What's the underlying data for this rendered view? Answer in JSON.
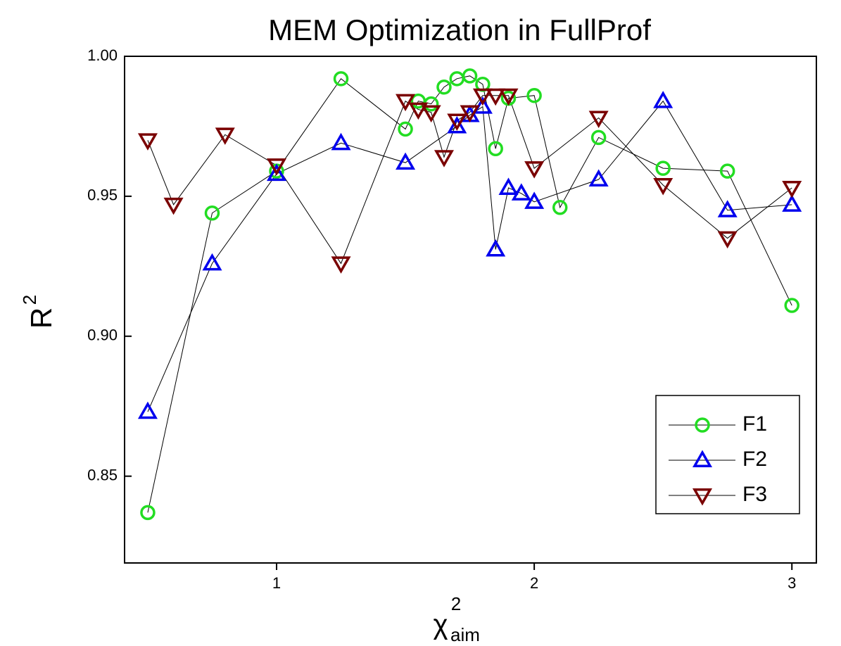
{
  "chart_data": {
    "type": "line",
    "title": "MEM Optimization in FullProf",
    "ylabel": {
      "base": "R",
      "sup": "2"
    },
    "xlabel": {
      "base": "χ",
      "sup": "2",
      "sub": "aim"
    },
    "xlim": [
      0.41,
      3.095
    ],
    "ylim": [
      0.819,
      1.0
    ],
    "xticks": [
      1,
      2,
      3
    ],
    "yticks": [
      {
        "value": 0.85,
        "label": "0.85"
      },
      {
        "value": 0.9,
        "label": "0.90"
      },
      0.95,
      {
        "value": 1.0,
        "label": "1.00"
      }
    ],
    "legend": "lower right",
    "series": [
      {
        "name": "F1",
        "color": "#22dd22",
        "marker": "circle",
        "x": [
          0.5,
          0.75,
          1.0,
          1.25,
          1.5,
          1.55,
          1.6,
          1.65,
          1.7,
          1.75,
          1.8,
          1.85,
          1.9,
          2.0,
          2.1,
          2.25,
          2.5,
          2.75,
          3.0
        ],
        "values": [
          0.837,
          0.944,
          0.959,
          0.992,
          0.974,
          0.984,
          0.983,
          0.989,
          0.992,
          0.993,
          0.99,
          0.967,
          0.985,
          0.986,
          0.946,
          0.971,
          0.96,
          0.959,
          0.911
        ]
      },
      {
        "name": "F2",
        "color": "#0000ee",
        "marker": "triangle-up",
        "x": [
          0.5,
          0.75,
          1.0,
          1.25,
          1.5,
          1.7,
          1.75,
          1.8,
          1.85,
          1.9,
          1.95,
          2.0,
          2.25,
          2.5,
          2.75,
          3.0
        ],
        "values": [
          0.873,
          0.926,
          0.958,
          0.969,
          0.962,
          0.975,
          0.979,
          0.982,
          0.931,
          0.953,
          0.951,
          0.948,
          0.956,
          0.984,
          0.945,
          0.947
        ]
      },
      {
        "name": "F3",
        "color": "#7a0000",
        "marker": "triangle-down",
        "x": [
          0.5,
          0.6,
          0.8,
          1.0,
          1.25,
          1.5,
          1.55,
          1.6,
          1.65,
          1.7,
          1.75,
          1.8,
          1.85,
          1.9,
          2.0,
          2.25,
          2.5,
          2.75,
          3.0
        ],
        "values": [
          0.97,
          0.947,
          0.972,
          0.961,
          0.926,
          0.984,
          0.981,
          0.98,
          0.964,
          0.977,
          0.98,
          0.986,
          0.986,
          0.986,
          0.96,
          0.978,
          0.954,
          0.935,
          0.953
        ]
      }
    ]
  }
}
